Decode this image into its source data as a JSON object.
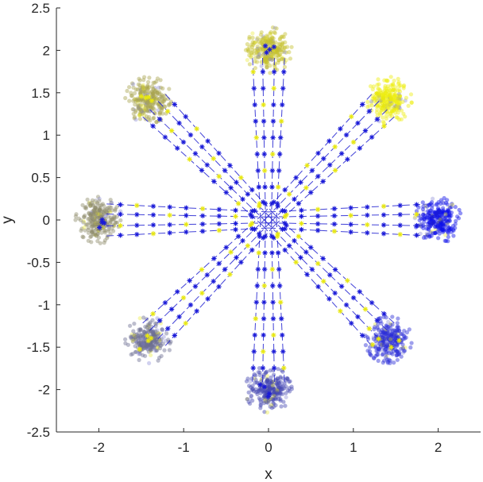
{
  "chart_data": {
    "type": "scatter",
    "xlabel": "x",
    "ylabel": "y",
    "xlim": [
      -2.5,
      2.5
    ],
    "ylim": [
      -2.5,
      2.5
    ],
    "xticks": [
      "-2",
      "-1",
      "0",
      "1",
      "2"
    ],
    "yticks": [
      "2.5",
      "2",
      "1.5",
      "1",
      "0.5",
      "0",
      "-0.5",
      "-1",
      "-1.5",
      "-2",
      "-2.5"
    ],
    "grid": false,
    "legend": "none",
    "clusters": [
      {
        "x": 0,
        "y": 2,
        "color": "#c6c22e"
      },
      {
        "x": 1.414,
        "y": 1.414,
        "color": "#eded10"
      },
      {
        "x": 2,
        "y": 0,
        "color": "#0d10e8"
      },
      {
        "x": 1.414,
        "y": -1.414,
        "color": "#2b2dd8"
      },
      {
        "x": 0,
        "y": -2,
        "color": "#4446b2"
      },
      {
        "x": -1.414,
        "y": -1.414,
        "color": "#6d6f93"
      },
      {
        "x": -2,
        "y": 0,
        "color": "#8d8c6b"
      },
      {
        "x": -1.414,
        "y": 1.414,
        "color": "#a8a550"
      }
    ],
    "cluster_radius": 0.22,
    "trajectory_offsets": [
      -0.07,
      0.07,
      -0.19,
      0.19
    ],
    "trajectory_color": "#2020d0",
    "trajectory_marker_color": "#1a1ad8",
    "trajectory_alt_marker_color": "#e8e810",
    "axis_color": "#262626"
  }
}
